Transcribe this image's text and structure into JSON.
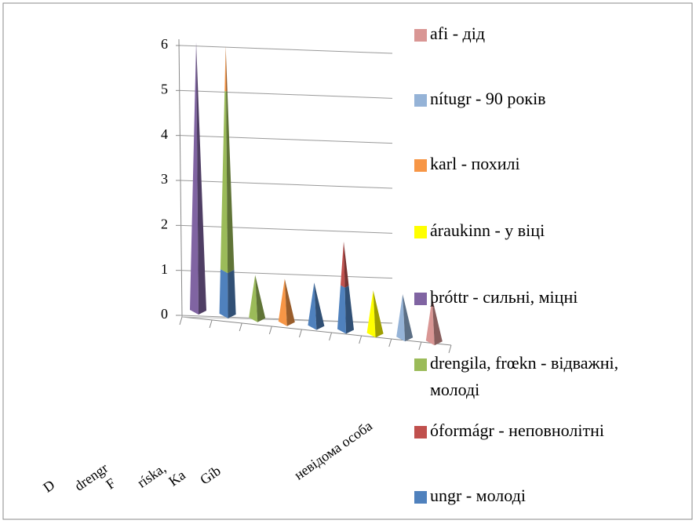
{
  "chart_data": {
    "type": "pyramid3d-stacked",
    "categories": [
      "D",
      "drengr",
      "F",
      "ríska,",
      "Ka",
      "Gíb",
      null,
      null,
      "невідома особа"
    ],
    "ylim": [
      0,
      6
    ],
    "yticks": [
      0,
      1,
      2,
      3,
      4,
      5,
      6
    ],
    "grid": true,
    "legend": "right",
    "series": [
      {
        "name": "ungr  - молоді",
        "color": "#4f81bd",
        "values": [
          0,
          1,
          0,
          0,
          1,
          1,
          0,
          0,
          0
        ]
      },
      {
        "name": "óformágr - неповнолітні",
        "color": "#c0504d",
        "values": [
          0,
          0,
          0,
          0,
          0,
          1,
          0,
          0,
          0
        ]
      },
      {
        "name": "drengila, frœkn - відважні, молоді",
        "color": "#9bbb59",
        "values": [
          0,
          4,
          1,
          0,
          0,
          0,
          0,
          0,
          0
        ]
      },
      {
        "name": "þróttr - сильні, міцні",
        "color": "#8064a2",
        "values": [
          6,
          0,
          0,
          0,
          0,
          0,
          0,
          0,
          0
        ]
      },
      {
        "name": "áraukinn - у віці",
        "color": "#ffff00",
        "values": [
          0,
          0,
          0,
          0,
          0,
          0,
          1,
          0,
          0
        ]
      },
      {
        "name": "karl  - похилі",
        "color": "#f79646",
        "values": [
          0,
          1,
          0,
          1,
          0,
          0,
          0,
          0,
          0
        ]
      },
      {
        "name": "nítugr - 90 років",
        "color": "#95b3d7",
        "values": [
          0,
          0,
          0,
          0,
          0,
          0,
          0,
          1,
          0
        ]
      },
      {
        "name": "afi - дід",
        "color": "#d99694",
        "values": [
          0,
          0,
          0,
          0,
          0,
          0,
          0,
          0,
          1
        ]
      }
    ]
  }
}
